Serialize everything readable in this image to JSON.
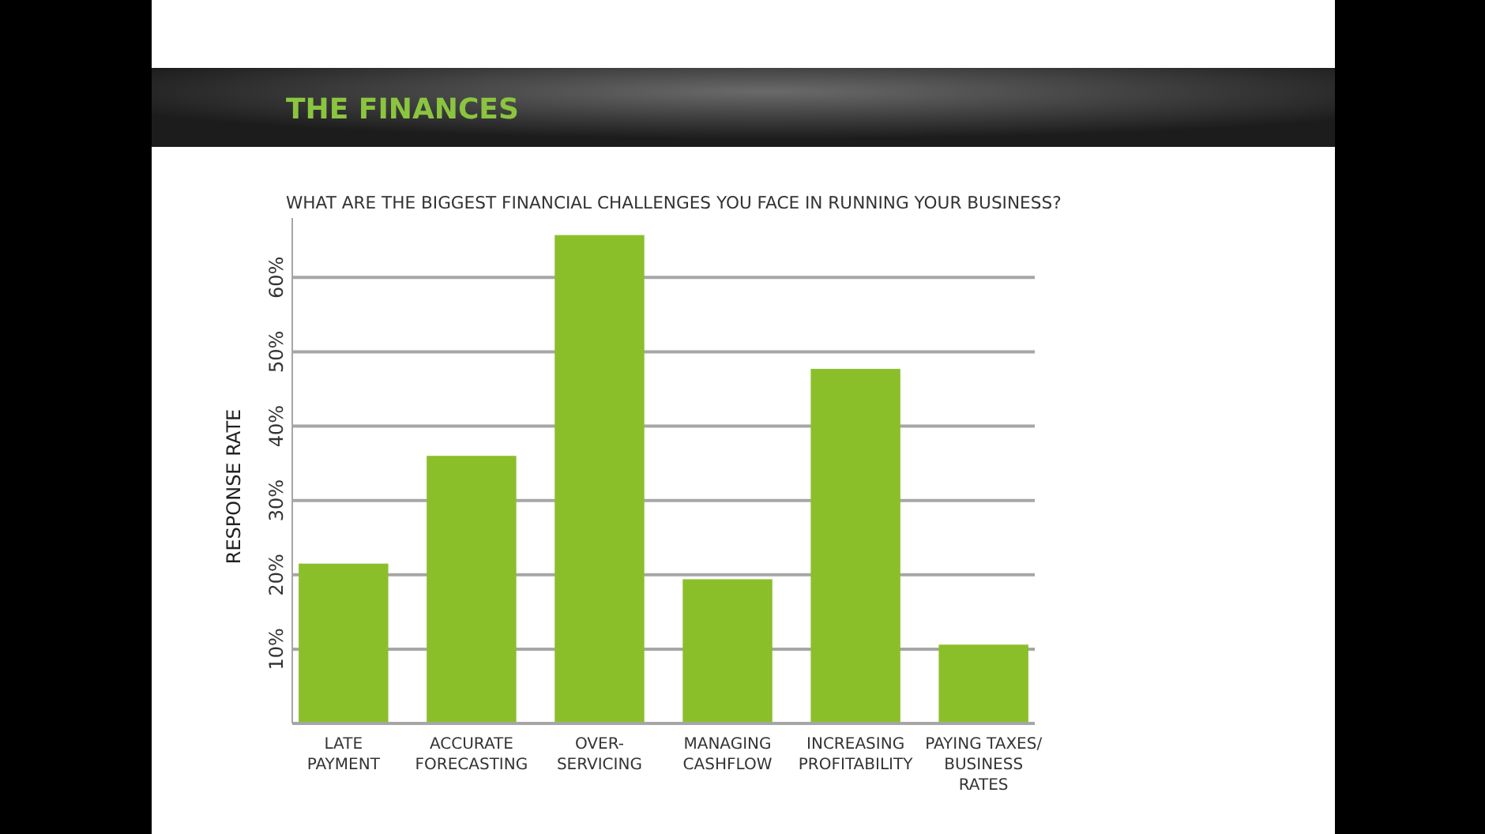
{
  "chart_data": {
    "type": "bar",
    "title": "THE FINANCES",
    "subtitle": "WHAT ARE THE BIGGEST FINANCIAL CHALLENGES YOU FACE IN RUNNING YOUR BUSINESS?",
    "ylabel": "RESPONSE RATE",
    "categories": [
      "LATE\nPAYMENT",
      "ACCURATE\nFORECASTING",
      "OVER-\nSERVICING",
      "MANAGING\nCASHFLOW",
      "INCREASING\nPROFITABILITY",
      "PAYING TAXES/\nBUSINESS\nRATES"
    ],
    "values": [
      21.5,
      36,
      65.7,
      19.4,
      47.7,
      10.6
    ],
    "color": "#8bbf2a",
    "ylim": [
      0,
      68
    ],
    "yticks": [
      {
        "value": 10,
        "label": "10%"
      },
      {
        "value": 20,
        "label": "20%"
      },
      {
        "value": 30,
        "label": "30%"
      },
      {
        "value": 40,
        "label": "40%"
      },
      {
        "value": 50,
        "label": "50%"
      },
      {
        "value": 60,
        "label": "60%"
      }
    ],
    "grid": "y"
  }
}
